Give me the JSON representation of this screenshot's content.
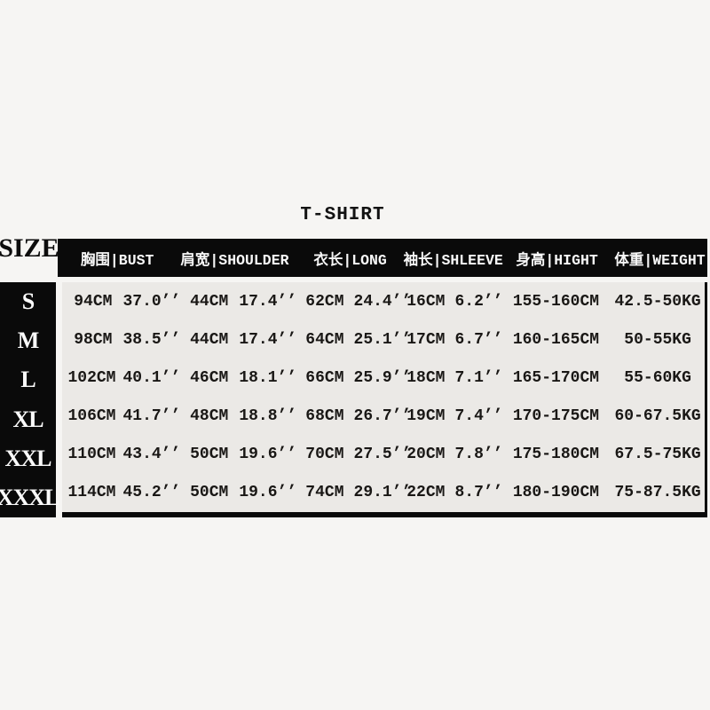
{
  "title": "T-SHIRT",
  "size_header": "SIZE",
  "columns": {
    "bust": "胸围|BUST",
    "shoulder": "肩宽|SHOULDER",
    "long": "衣长|LONG",
    "sleeve": "袖长|SHLEEVE",
    "height": "身高|HIGHT",
    "weight": "体重|WEIGHT"
  },
  "rows": [
    {
      "size": "S",
      "bust_cm": "94CM",
      "bust_in": "37.0’’",
      "shoulder_cm": "44CM",
      "shoulder_in": "17.4’’",
      "long_cm": "62CM",
      "long_in": "24.4’’",
      "sleeve_cm": "16CM",
      "sleeve_in": "6.2’’",
      "height": "155-160CM",
      "weight": "42.5-50KG"
    },
    {
      "size": "M",
      "bust_cm": "98CM",
      "bust_in": "38.5’’",
      "shoulder_cm": "44CM",
      "shoulder_in": "17.4’’",
      "long_cm": "64CM",
      "long_in": "25.1’’",
      "sleeve_cm": "17CM",
      "sleeve_in": "6.7’’",
      "height": "160-165CM",
      "weight": "50-55KG"
    },
    {
      "size": "L",
      "bust_cm": "102CM",
      "bust_in": "40.1’’",
      "shoulder_cm": "46CM",
      "shoulder_in": "18.1’’",
      "long_cm": "66CM",
      "long_in": "25.9’’",
      "sleeve_cm": "18CM",
      "sleeve_in": "7.1’’",
      "height": "165-170CM",
      "weight": "55-60KG"
    },
    {
      "size": "XL",
      "bust_cm": "106CM",
      "bust_in": "41.7’’",
      "shoulder_cm": "48CM",
      "shoulder_in": "18.8’’",
      "long_cm": "68CM",
      "long_in": "26.7’’",
      "sleeve_cm": "19CM",
      "sleeve_in": "7.4’’",
      "height": "170-175CM",
      "weight": "60-67.5KG"
    },
    {
      "size": "XXL",
      "bust_cm": "110CM",
      "bust_in": "43.4’’",
      "shoulder_cm": "50CM",
      "shoulder_in": "19.6’’",
      "long_cm": "70CM",
      "long_in": "27.5’’",
      "sleeve_cm": "20CM",
      "sleeve_in": "7.8’’",
      "height": "175-180CM",
      "weight": "67.5-75KG"
    },
    {
      "size": "XXXL",
      "bust_cm": "114CM",
      "bust_in": "45.2’’",
      "shoulder_cm": "50CM",
      "shoulder_in": "19.6’’",
      "long_cm": "74CM",
      "long_in": "29.1’’",
      "sleeve_cm": "22CM",
      "sleeve_in": "8.7’’",
      "height": "180-190CM",
      "weight": "75-87.5KG"
    }
  ],
  "colors": {
    "page_background": "#f6f5f3",
    "table_background": "#ebe9e6",
    "header_bar": "#0a0a0a",
    "header_text": "#ffffff",
    "data_text": "#191715"
  },
  "chart_data": {
    "type": "table",
    "title": "T-SHIRT",
    "row_header": "SIZE",
    "columns": [
      "胸围|BUST",
      "肩宽|SHOULDER",
      "衣长|LONG",
      "袖长|SHLEEVE",
      "身高|HIGHT",
      "体重|WEIGHT"
    ],
    "rows": [
      [
        "S",
        "94CM 37.0’’",
        "44CM 17.4’’",
        "62CM 24.4’’",
        "16CM 6.2’’",
        "155-160CM",
        "42.5-50KG"
      ],
      [
        "M",
        "98CM 38.5’’",
        "44CM 17.4’’",
        "64CM 25.1’’",
        "17CM 6.7’’",
        "160-165CM",
        "50-55KG"
      ],
      [
        "L",
        "102CM 40.1’’",
        "46CM 18.1’’",
        "66CM 25.9’’",
        "18CM 7.1’’",
        "165-170CM",
        "55-60KG"
      ],
      [
        "XL",
        "106CM 41.7’’",
        "48CM 18.8’’",
        "68CM 26.7’’",
        "19CM 7.4’’",
        "170-175CM",
        "60-67.5KG"
      ],
      [
        "XXL",
        "110CM 43.4’’",
        "50CM 19.6’’",
        "70CM 27.5’’",
        "20CM 7.8’’",
        "175-180CM",
        "67.5-75KG"
      ],
      [
        "XXXL",
        "114CM 45.2’’",
        "50CM 19.6’’",
        "74CM 29.1’’",
        "22CM 8.7’’",
        "180-190CM",
        "75-87.5KG"
      ]
    ]
  }
}
